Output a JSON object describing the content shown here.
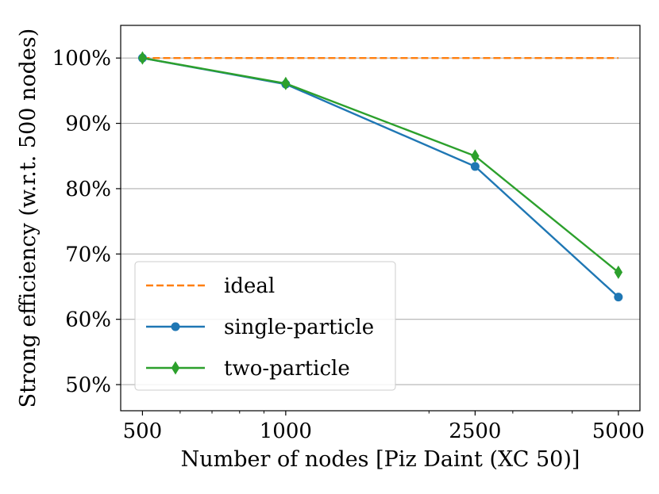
{
  "chart_data": {
    "type": "line",
    "xlabel": "Number of nodes [Piz Daint (XC 50)]",
    "ylabel": "Strong efficiency (w.r.t. 500 nodes)",
    "x_scale": "log",
    "x_ticks": [
      500,
      1000,
      2500,
      5000
    ],
    "x_tick_labels": [
      "500",
      "1000",
      "2500",
      "5000"
    ],
    "y_ticks": [
      50,
      60,
      70,
      80,
      90,
      100
    ],
    "y_tick_labels": [
      "50%",
      "60%",
      "70%",
      "80%",
      "90%",
      "100%"
    ],
    "xlim": [
      450,
      5550
    ],
    "ylim": [
      46,
      105
    ],
    "grid": "y",
    "legend_position": "lower-left",
    "series": [
      {
        "name": "ideal",
        "x": [
          500,
          5000
        ],
        "y": [
          100,
          100
        ],
        "color": "#ff7f0e",
        "linestyle": "dashed",
        "marker": "none"
      },
      {
        "name": "single-particle",
        "x": [
          500,
          1000,
          2500,
          5000
        ],
        "y": [
          100,
          96,
          83.4,
          63.4
        ],
        "color": "#1f77b4",
        "linestyle": "solid",
        "marker": "circle"
      },
      {
        "name": "two-particle",
        "x": [
          500,
          1000,
          2500,
          5000
        ],
        "y": [
          100,
          96.1,
          85,
          67.2
        ],
        "color": "#2ca02c",
        "linestyle": "solid",
        "marker": "diamond"
      }
    ]
  }
}
